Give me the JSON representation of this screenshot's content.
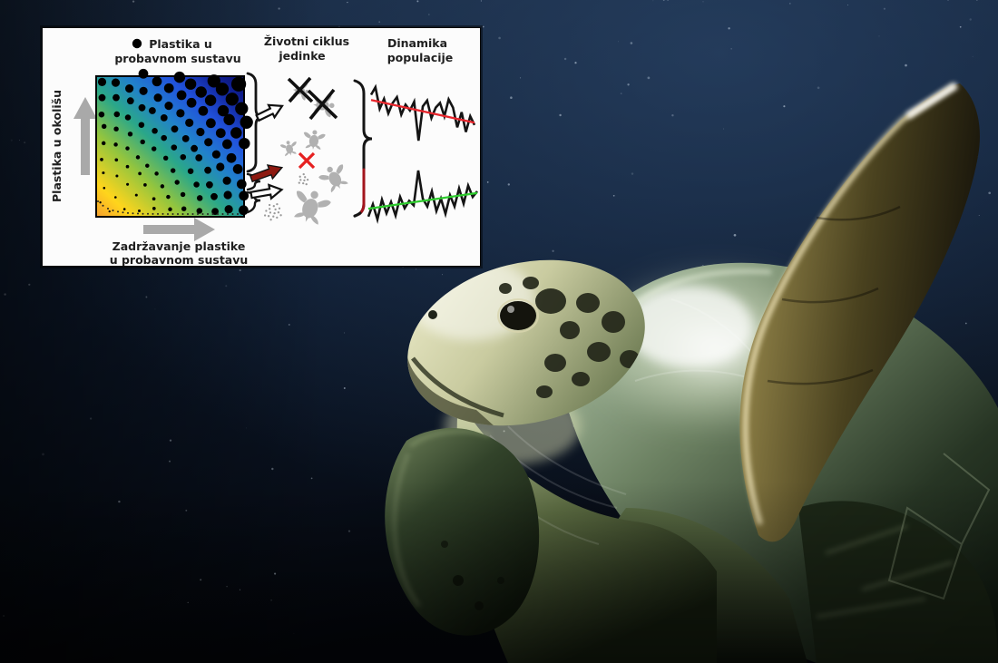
{
  "overlay_panel": {
    "legend": {
      "marker": "filled-black-circle",
      "marker_color": "#000000",
      "label_line1": "Plastika u",
      "label_line2": "probavnom sustavu"
    },
    "column_titles": {
      "life_cycle": {
        "line1": "Životni ciklus",
        "line2": "jedinke"
      },
      "population": {
        "line1": "Dinamika",
        "line2": "populacije"
      }
    },
    "y_axis_label": "Plastika u okolišu",
    "x_axis_label_line1": "Zadržavanje plastike",
    "x_axis_label_line2": "u probavnom sustavu",
    "heatmap_gradient": [
      "#f59f2e",
      "#ffd51c",
      "#93c53e",
      "#2aa789",
      "#2180cc",
      "#2153dc",
      "#11259d",
      "#0a0e6b"
    ],
    "turtle_silhouette_color": "#b1b1b1",
    "egg_dot_color": "#9a9a9a",
    "accent_colors": {
      "red_x": "#e62020",
      "red_arrow": "#8d1910",
      "brace_red": "#a3151d",
      "axis_arrow_gray": "#a9a9a9"
    }
  },
  "chart_data": [
    {
      "type": "line",
      "name": "population-dynamics-declining",
      "values": [
        0.82,
        0.95,
        0.58,
        0.75,
        0.5,
        0.68,
        0.78,
        0.48,
        0.65,
        0.55,
        0.7,
        0.03,
        0.62,
        0.72,
        0.42,
        0.6,
        0.68,
        0.45,
        0.74,
        0.6,
        0.26,
        0.52,
        0.18,
        0.45,
        0.3
      ],
      "trend": [
        0.73,
        0.34
      ],
      "trend_color": "#e8262d",
      "line_color": "#141414",
      "axes": "none",
      "ylim": [
        0,
        1
      ]
    },
    {
      "type": "line",
      "name": "population-dynamics-stable",
      "values": [
        0.1,
        0.32,
        0.05,
        0.4,
        0.16,
        0.36,
        0.12,
        0.45,
        0.25,
        0.38,
        0.3,
        0.92,
        0.42,
        0.28,
        0.55,
        0.2,
        0.42,
        0.15,
        0.48,
        0.28,
        0.6,
        0.33,
        0.65,
        0.45,
        0.55
      ],
      "trend": [
        0.24,
        0.52
      ],
      "trend_color": "#2ecc2e",
      "line_color": "#141414",
      "axes": "none",
      "ylim": [
        0,
        1
      ]
    }
  ],
  "photo": {
    "subject": "green sea turtle swimming underwater",
    "water_colors": [
      "#16263d",
      "#0d1a2e",
      "#04060b"
    ]
  }
}
